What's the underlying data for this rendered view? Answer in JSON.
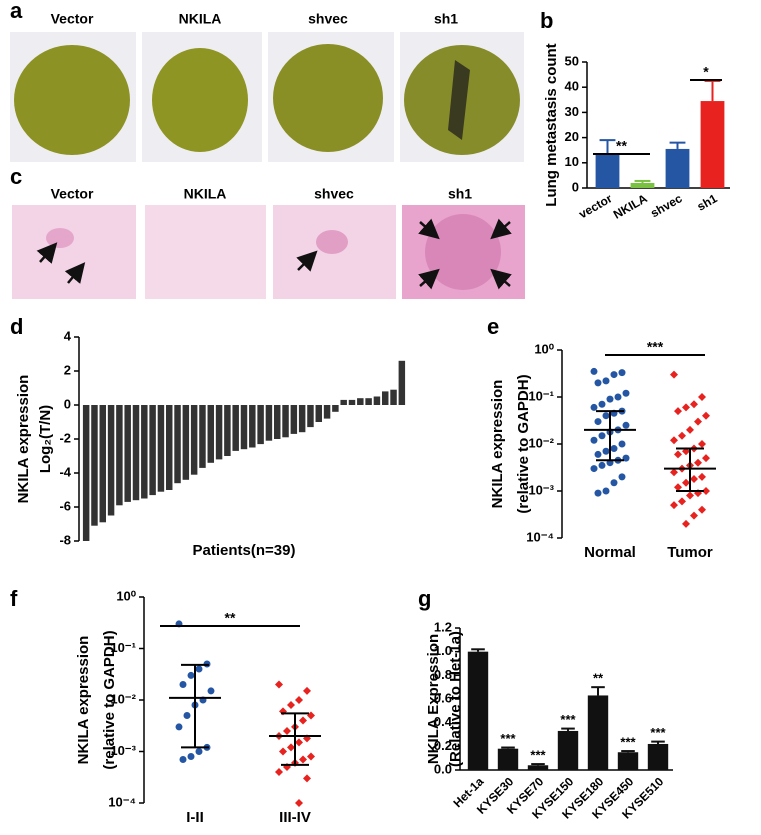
{
  "panels": {
    "a": {
      "letter": "a",
      "labels": [
        "Vector",
        "NKILA",
        "shvec",
        "sh1"
      ]
    },
    "c": {
      "letter": "c",
      "labels": [
        "Vector",
        "NKILA",
        "shvec",
        "sh1"
      ]
    }
  },
  "chart_data": [
    {
      "type": "bar",
      "panel_label": "b",
      "ylabel": [
        "Lung metastasis count"
      ],
      "categories": [
        "vector",
        "NKILA",
        "shvec",
        "sh1"
      ],
      "values": [
        13.5,
        2,
        15.5,
        34.5
      ],
      "errors": [
        5.5,
        0.8,
        2.5,
        8
      ],
      "colors": [
        "#2456a4",
        "#7ac143",
        "#2456a4",
        "#e8221f"
      ],
      "ylim": [
        0,
        50
      ],
      "yticks": [
        0,
        10,
        20,
        30,
        40,
        50
      ],
      "annotations": [
        "**",
        "*"
      ]
    },
    {
      "type": "bar",
      "panel_label": "d",
      "ylabel": [
        "NKILA expression",
        "Log₂(T/N)"
      ],
      "xlabel": "Patients(n=39)",
      "values": [
        -8,
        -7.1,
        -6.9,
        -6.5,
        -5.9,
        -5.7,
        -5.6,
        -5.5,
        -5.3,
        -5.1,
        -5.0,
        -4.6,
        -4.4,
        -4.1,
        -3.7,
        -3.4,
        -3.2,
        -3.0,
        -2.7,
        -2.6,
        -2.5,
        -2.3,
        -2.1,
        -2.0,
        -1.9,
        -1.7,
        -1.6,
        -1.3,
        -1.0,
        -0.8,
        -0.4,
        0.3,
        0.3,
        0.4,
        0.4,
        0.5,
        0.8,
        0.9,
        2.6
      ],
      "color": "#333333",
      "ylim": [
        -8,
        4
      ],
      "yticks": [
        -8,
        -6,
        -4,
        -2,
        0,
        2,
        4
      ],
      "annotations": []
    },
    {
      "type": "strip",
      "panel_label": "e",
      "ylabel": [
        "NKILA expression",
        "(relative to GAPDH)"
      ],
      "log": true,
      "ylim": [
        0.0001,
        1
      ],
      "yticks": [
        {
          "value": 1,
          "label": "10⁰"
        },
        {
          "value": 0.1,
          "label": "10⁻¹"
        },
        {
          "value": 0.01,
          "label": "10⁻²"
        },
        {
          "value": 0.001,
          "label": "10⁻³"
        },
        {
          "value": 0.0001,
          "label": "10⁻⁴"
        }
      ],
      "series": [
        {
          "name": "Normal",
          "color": "#2456a4",
          "marker": "circle",
          "median": 0.02,
          "lower": 0.0045,
          "upper": 0.05,
          "values": [
            0.35,
            0.33,
            0.3,
            0.22,
            0.2,
            0.12,
            0.1,
            0.09,
            0.07,
            0.06,
            0.05,
            0.045,
            0.04,
            0.03,
            0.025,
            0.02,
            0.018,
            0.015,
            0.012,
            0.01,
            0.008,
            0.007,
            0.006,
            0.005,
            0.0045,
            0.004,
            0.0035,
            0.003,
            0.002,
            0.0015,
            0.001,
            0.0009
          ]
        },
        {
          "name": "Tumor",
          "color": "#e8221f",
          "marker": "diamond",
          "median": 0.003,
          "lower": 0.001,
          "upper": 0.008,
          "values": [
            0.3,
            0.1,
            0.07,
            0.06,
            0.05,
            0.04,
            0.03,
            0.02,
            0.015,
            0.012,
            0.01,
            0.008,
            0.007,
            0.006,
            0.005,
            0.004,
            0.0035,
            0.003,
            0.0025,
            0.002,
            0.0018,
            0.0015,
            0.0012,
            0.001,
            0.0009,
            0.0008,
            0.0006,
            0.0005,
            0.0004,
            0.0003,
            0.0002
          ]
        }
      ],
      "annotations": [
        "***"
      ]
    },
    {
      "type": "strip",
      "panel_label": "f",
      "ylabel": [
        "NKILA expression",
        "(relative to GAPDH)"
      ],
      "log": true,
      "ylim": [
        0.0001,
        1
      ],
      "yticks": [
        {
          "value": 1,
          "label": "10⁰"
        },
        {
          "value": 0.1,
          "label": "10⁻¹"
        },
        {
          "value": 0.01,
          "label": "10⁻²"
        },
        {
          "value": 0.001,
          "label": "10⁻³"
        },
        {
          "value": 0.0001,
          "label": "10⁻⁴"
        }
      ],
      "series": [
        {
          "name": "I-II",
          "color": "#2456a4",
          "marker": "circle",
          "median": 0.011,
          "lower": 0.0012,
          "upper": 0.048,
          "values": [
            0.3,
            0.05,
            0.04,
            0.03,
            0.02,
            0.015,
            0.01,
            0.008,
            0.005,
            0.003,
            0.0012,
            0.001,
            0.0008,
            0.0007
          ]
        },
        {
          "name": "III-IV",
          "color": "#e8221f",
          "marker": "diamond",
          "median": 0.002,
          "lower": 0.00055,
          "upper": 0.0055,
          "values": [
            0.02,
            0.015,
            0.01,
            0.008,
            0.006,
            0.005,
            0.004,
            0.003,
            0.0025,
            0.002,
            0.0018,
            0.0015,
            0.0012,
            0.001,
            0.0008,
            0.0007,
            0.0006,
            0.0005,
            0.0004,
            0.0003,
            0.0001
          ]
        }
      ],
      "annotations": [
        "**"
      ]
    },
    {
      "type": "bar",
      "panel_label": "g",
      "ylabel": [
        "NKILA Expression",
        "(Relative to Het-1a)"
      ],
      "categories": [
        "Het-1a",
        "KYSE30",
        "KYSE70",
        "KYSE150",
        "KYSE180",
        "KYSE450",
        "KYSE510"
      ],
      "values": [
        1.0,
        0.18,
        0.04,
        0.33,
        0.63,
        0.15,
        0.22
      ],
      "errors": [
        0.02,
        0.01,
        0.01,
        0.02,
        0.07,
        0.01,
        0.02
      ],
      "value_labels": [
        null,
        "***",
        "***",
        "***",
        "**",
        "***",
        "***"
      ],
      "color": "#111111",
      "ylim": [
        0,
        1.2
      ],
      "yticks": [
        {
          "value": 0,
          "label": "0.0"
        },
        0.2,
        0.4,
        0.6,
        0.8,
        {
          "value": 1,
          "label": "1.0"
        },
        1.2
      ],
      "annotations": []
    }
  ]
}
